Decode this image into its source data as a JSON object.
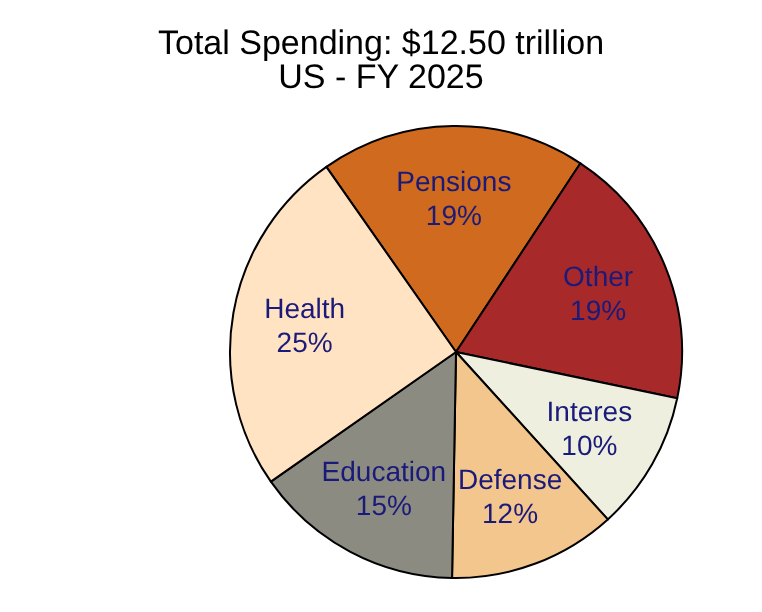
{
  "chart_data": {
    "type": "pie",
    "title": "Total Spending: $12.50 trillion",
    "subtitle": "US - FY 2025",
    "categories": [
      "Pensions",
      "Other",
      "Interes",
      "Defense",
      "Education",
      "Health"
    ],
    "values": [
      19,
      19,
      10,
      12,
      15,
      25
    ],
    "value_labels": [
      "19%",
      "19%",
      "10%",
      "12%",
      "15%",
      "25%"
    ],
    "colors": [
      "#cf6a1e",
      "#a8292a",
      "#efefe0",
      "#f2c68c",
      "#8b8b82",
      "#ffe3c2"
    ],
    "legend": false
  }
}
